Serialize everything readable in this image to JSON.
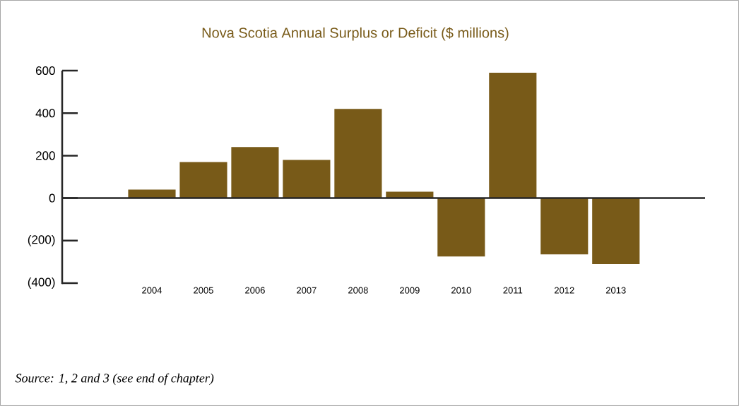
{
  "chart_data": {
    "type": "bar",
    "title": "Nova Scotia Annual Surplus or Deficit ($ millions)",
    "categories": [
      "2004",
      "2005",
      "2006",
      "2007",
      "2008",
      "2009",
      "2010",
      "2011",
      "2012",
      "2013"
    ],
    "values": [
      40,
      170,
      240,
      180,
      420,
      30,
      -275,
      590,
      -265,
      -310
    ],
    "color": "#785a18",
    "ylim": [
      -400,
      600
    ],
    "yticks": [
      {
        "value": -400,
        "label": "(400)"
      },
      {
        "value": -200,
        "label": "(200)"
      },
      0,
      200,
      400,
      600
    ],
    "annotations": [
      "Source:  1, 2 and 3 (see end of chapter)"
    ]
  }
}
